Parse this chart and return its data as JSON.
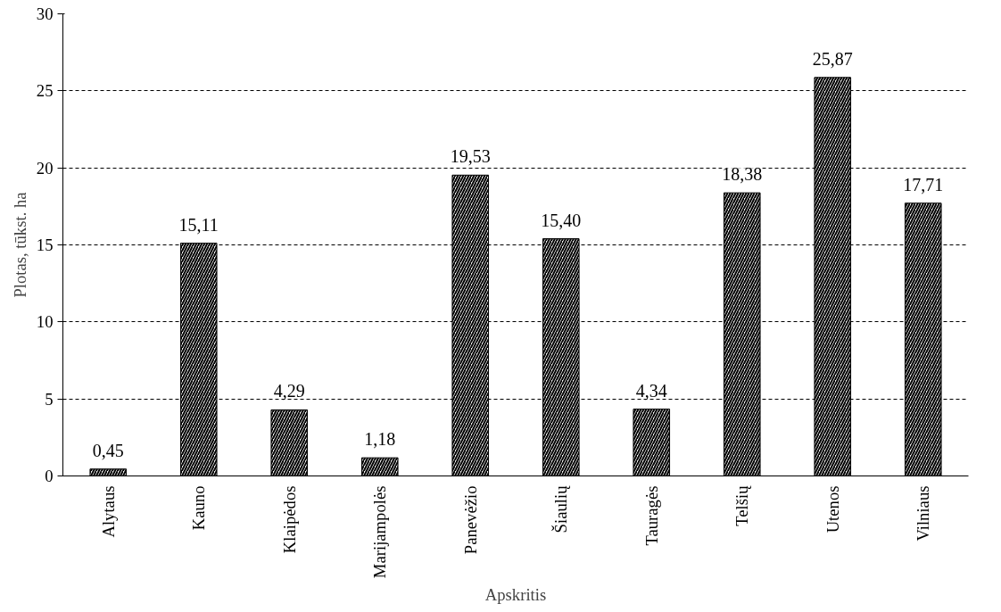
{
  "chart_data": {
    "type": "bar",
    "xlabel": "Apskritis",
    "ylabel": "Plotas, tūkst. ha",
    "categories": [
      "Alytaus",
      "Kauno",
      "Klaipėdos",
      "Marijampolės",
      "Panevėžio",
      "Šiaulių",
      "Tauragės",
      "Telšių",
      "Utenos",
      "Vilniaus"
    ],
    "values": [
      0.45,
      15.11,
      4.29,
      1.18,
      19.53,
      15.4,
      4.34,
      18.38,
      25.87,
      17.71
    ],
    "value_labels": [
      "0,45",
      "15,11",
      "4,29",
      "1,18",
      "19,53",
      "15,40",
      "4,34",
      "18,38",
      "25,87",
      "17,71"
    ],
    "color": "#000000",
    "ylim": [
      0,
      30
    ],
    "yticks": [
      0,
      5,
      10,
      15,
      20,
      25,
      30
    ],
    "grid": "y"
  }
}
